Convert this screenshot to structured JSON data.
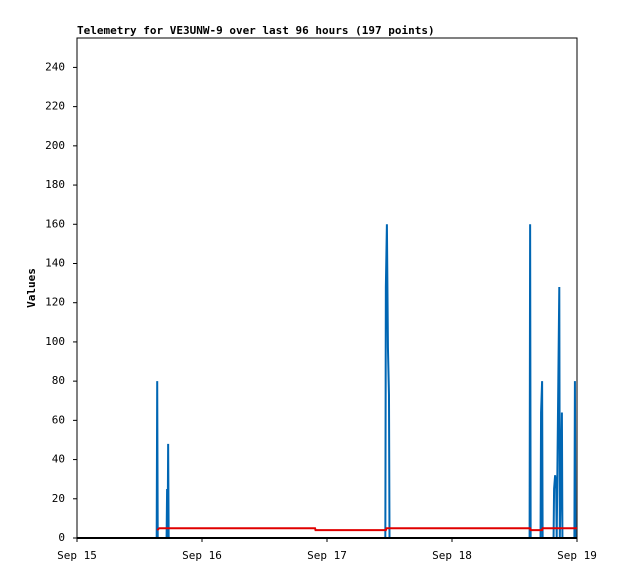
{
  "chart_data": {
    "type": "line",
    "title": "Telemetry for VE3UNW-9 over last 96 hours (197 points)",
    "y_label": "Values",
    "xlim": [
      0,
      96
    ],
    "xticks": [
      {
        "value": 0,
        "label": "Sep 15"
      },
      {
        "value": 24,
        "label": "Sep 16"
      },
      {
        "value": 48,
        "label": "Sep 17"
      },
      {
        "value": 72,
        "label": "Sep 18"
      },
      {
        "value": 96,
        "label": "Sep 19"
      }
    ],
    "ylim": [
      0,
      255
    ],
    "yticks": [
      0,
      20,
      40,
      60,
      80,
      100,
      120,
      140,
      160,
      180,
      200,
      220,
      240
    ],
    "series": [
      {
        "color": "#0066b3",
        "x": [
          15.3,
          15.4,
          15.5,
          17.2,
          17.3,
          17.4,
          17.5,
          17.6,
          59.2,
          59.3,
          59.5,
          59.7,
          59.9,
          60.0,
          86.9,
          87.0,
          87.1,
          89.0,
          89.1,
          89.3,
          89.4,
          91.5,
          91.6,
          91.8,
          92.0,
          92.1,
          92.6,
          92.7,
          92.9,
          93.1,
          93.2,
          95.5,
          95.6,
          95.7
        ],
        "values": [
          0,
          80,
          0,
          0,
          25,
          0,
          48,
          0,
          0,
          128,
          160,
          97,
          73,
          0,
          0,
          160,
          0,
          0,
          64,
          80,
          0,
          0,
          25,
          32,
          26,
          0,
          128,
          0,
          32,
          64,
          0,
          0,
          80,
          0
        ]
      },
      {
        "color": "#e00000",
        "x": [
          15.4,
          15.8,
          45.7,
          45.8,
          59.3,
          59.4,
          87.0,
          87.1,
          89.3,
          89.4,
          96
        ],
        "values": [
          4,
          5,
          5,
          4,
          4,
          5,
          5,
          4,
          4,
          5,
          5
        ]
      }
    ]
  }
}
